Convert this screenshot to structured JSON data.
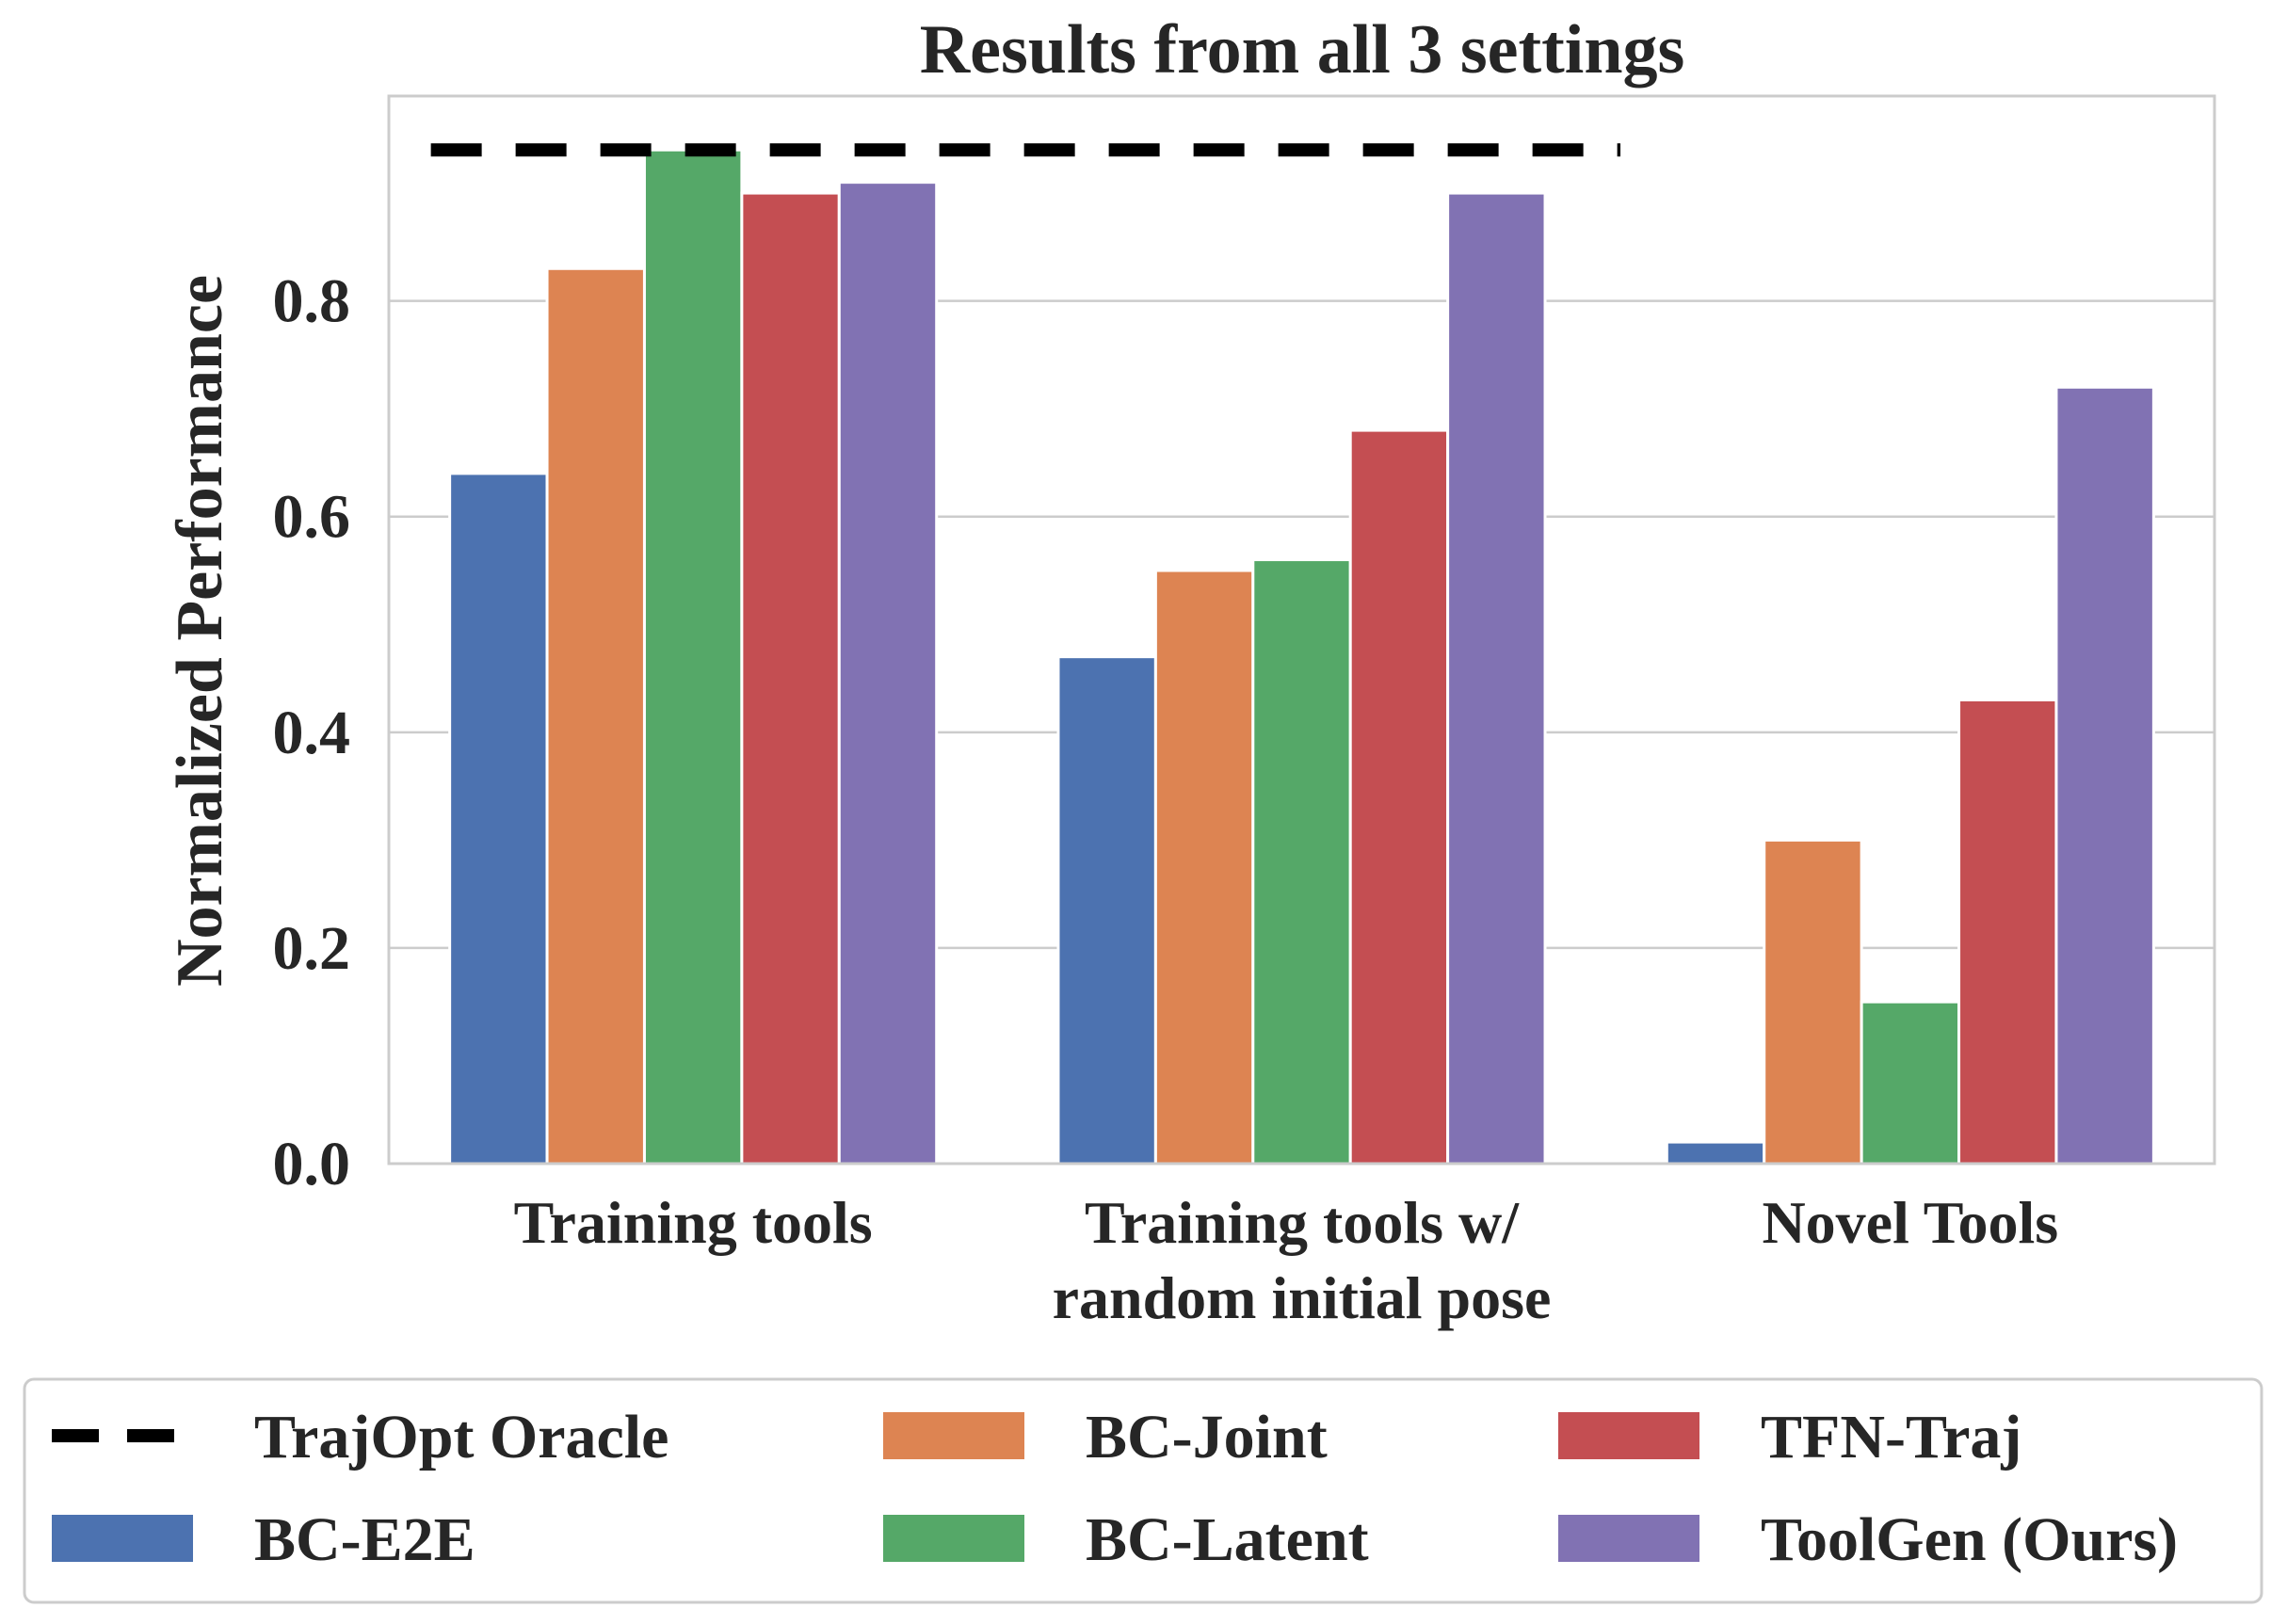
{
  "chart_data": {
    "type": "bar",
    "title": "Results from all 3 settings",
    "xlabel": "",
    "ylabel": "Normalized Performance",
    "ylim": [
      0,
      0.99
    ],
    "yticks": [
      "0.0",
      "0.2",
      "0.4",
      "0.6",
      "0.8"
    ],
    "grid": true,
    "categories": [
      [
        "Training tools"
      ],
      [
        "Training tools w/",
        "random initial pose"
      ],
      [
        "Novel Tools"
      ]
    ],
    "series": [
      {
        "name": "BC-E2E",
        "color": "#4c72b0",
        "values": [
          0.64,
          0.47,
          0.02
        ]
      },
      {
        "name": "BC-Joint",
        "color": "#dd8452",
        "values": [
          0.83,
          0.55,
          0.3
        ]
      },
      {
        "name": "BC-Latent",
        "color": "#55a868",
        "values": [
          0.94,
          0.56,
          0.15
        ]
      },
      {
        "name": "TFN-Traj",
        "color": "#c44e52",
        "values": [
          0.9,
          0.68,
          0.43
        ]
      },
      {
        "name": "ToolGen (Ours)",
        "color": "#8172b3",
        "values": [
          0.91,
          0.9,
          0.72
        ]
      }
    ],
    "reference_line": {
      "name": "TrajOpt Oracle",
      "value": 0.94,
      "style": "dashed",
      "color": "#000000",
      "span": "first two groups"
    },
    "legend": {
      "placement": "bottom",
      "entries": [
        "TrajOpt Oracle",
        "BC-E2E",
        "BC-Joint",
        "BC-Latent",
        "TFN-Traj",
        "ToolGen (Ours)"
      ]
    }
  }
}
